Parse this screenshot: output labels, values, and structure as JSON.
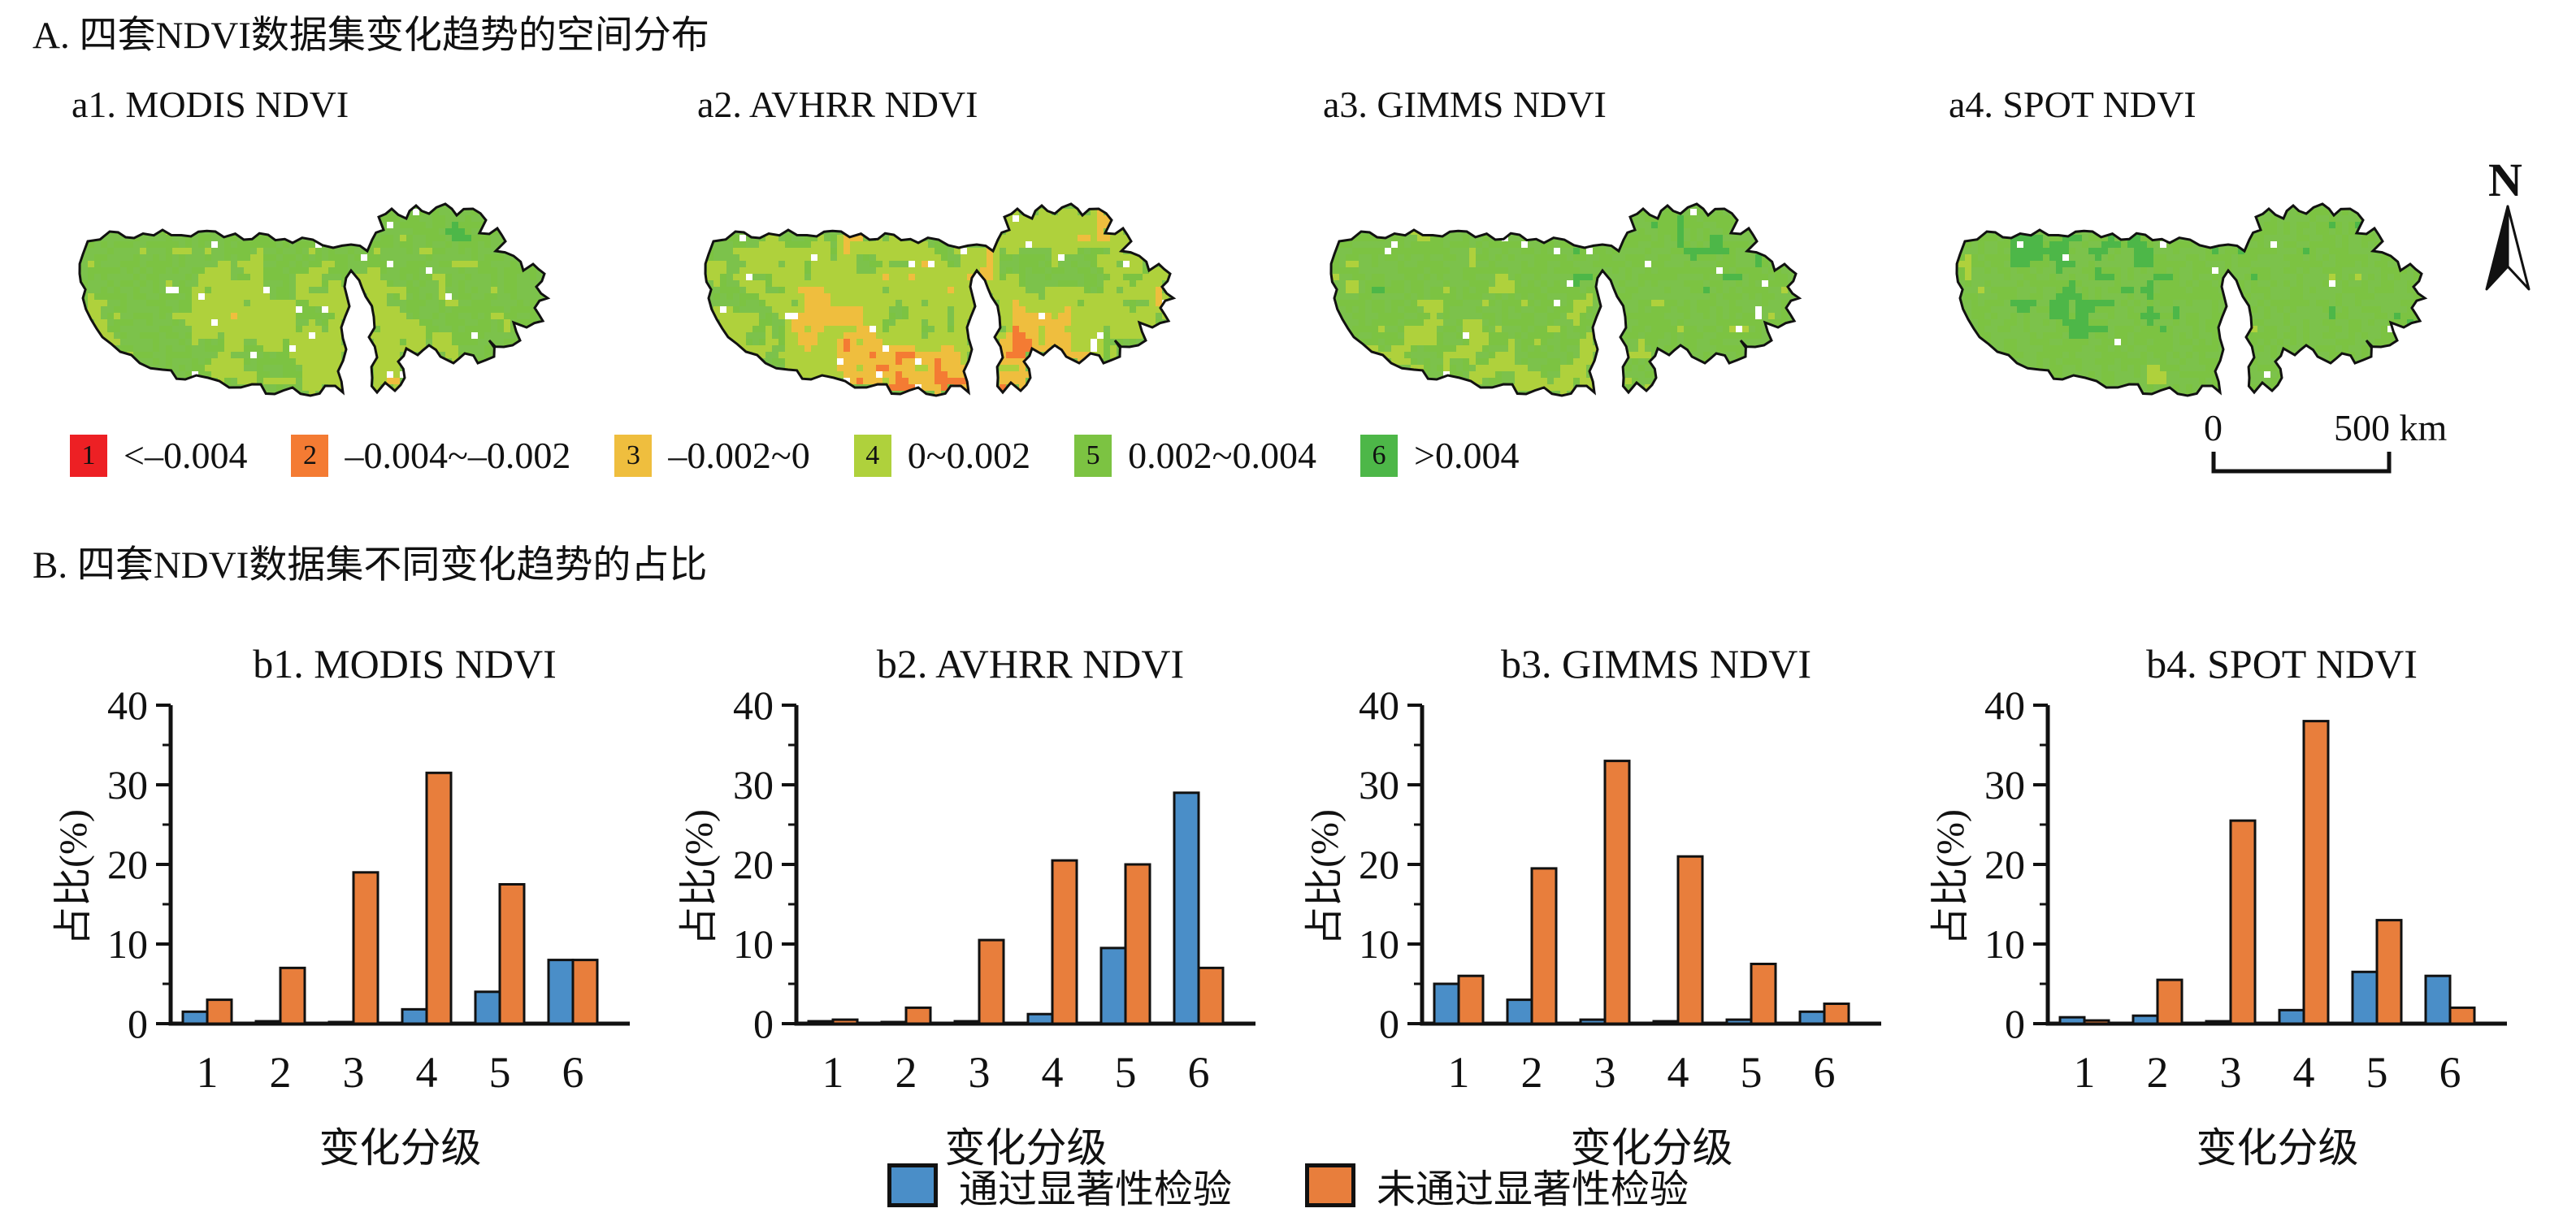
{
  "panel_a": {
    "title": "A. 四套NDVI数据集变化趋势的空间分布",
    "maps": [
      {
        "label": "a1. MODIS NDVI",
        "class_weights": [
          0.03,
          0.07,
          0.1,
          0.28,
          0.36,
          0.16
        ],
        "white": 0.02,
        "bias": 0.9
      },
      {
        "label": "a2. AVHRR NDVI",
        "class_weights": [
          0.1,
          0.16,
          0.16,
          0.22,
          0.26,
          0.1
        ],
        "white": 0.02,
        "bias": 1.25
      },
      {
        "label": "a3. GIMMS NDVI",
        "class_weights": [
          0.04,
          0.09,
          0.11,
          0.26,
          0.34,
          0.16
        ],
        "white": 0.015,
        "bias": 0.9
      },
      {
        "label": "a4. SPOT NDVI",
        "class_weights": [
          0.01,
          0.03,
          0.06,
          0.24,
          0.42,
          0.24
        ],
        "white": 0.01,
        "bias": 0.5
      }
    ],
    "legend_classes": [
      {
        "id": "1",
        "color": "#ED2024",
        "label": "<–0.004"
      },
      {
        "id": "2",
        "color": "#F47B33",
        "label": "–0.004~–0.002"
      },
      {
        "id": "3",
        "color": "#EFBE3E",
        "label": "–0.002~0"
      },
      {
        "id": "4",
        "color": "#AFD13C",
        "label": "0~0.002"
      },
      {
        "id": "5",
        "color": "#7CC342",
        "label": "0.002~0.004"
      },
      {
        "id": "6",
        "color": "#4DB748",
        "label": ">0.004"
      }
    ],
    "north_label": "N",
    "scalebar": {
      "start": "0",
      "end": "500 km"
    }
  },
  "panel_b": {
    "title": "B. 四套NDVI数据集不同变化趋势的占比",
    "legend": [
      {
        "color": "#4A8EC8",
        "label": "通过显著性检验"
      },
      {
        "color": "#E87E3C",
        "label": "未通过显著性检验"
      }
    ]
  },
  "chart_data": [
    {
      "type": "bar",
      "title": "b1. MODIS NDVI",
      "categories": [
        "1",
        "2",
        "3",
        "4",
        "5",
        "6"
      ],
      "series": [
        {
          "name": "通过显著性检验",
          "color": "#4A8EC8",
          "values": [
            1.5,
            0.3,
            0.2,
            1.8,
            4.0,
            8.0
          ]
        },
        {
          "name": "未通过显著性检验",
          "color": "#E87E3C",
          "values": [
            3.0,
            7.0,
            19.0,
            31.5,
            17.5,
            8.0
          ]
        }
      ],
      "xlabel": "变化分级",
      "ylabel": "占比(%)",
      "ylim": [
        0,
        40
      ],
      "yticks": [
        0,
        10,
        20,
        30,
        40
      ],
      "grid": false,
      "legend_position": "bottom-shared"
    },
    {
      "type": "bar",
      "title": "b2. AVHRR NDVI",
      "categories": [
        "1",
        "2",
        "3",
        "4",
        "5",
        "6"
      ],
      "series": [
        {
          "name": "通过显著性检验",
          "color": "#4A8EC8",
          "values": [
            0.3,
            0.1,
            0.3,
            1.2,
            9.5,
            29.0
          ]
        },
        {
          "name": "未通过显著性检验",
          "color": "#E87E3C",
          "values": [
            0.5,
            2.0,
            10.5,
            20.5,
            20.0,
            7.0
          ]
        }
      ],
      "xlabel": "变化分级",
      "ylabel": "占比(%)",
      "ylim": [
        0,
        40
      ],
      "yticks": [
        0,
        10,
        20,
        30,
        40
      ],
      "grid": false,
      "legend_position": "bottom-shared"
    },
    {
      "type": "bar",
      "title": "b3. GIMMS NDVI",
      "categories": [
        "1",
        "2",
        "3",
        "4",
        "5",
        "6"
      ],
      "series": [
        {
          "name": "通过显著性检验",
          "color": "#4A8EC8",
          "values": [
            5.0,
            3.0,
            0.5,
            0.3,
            0.5,
            1.5
          ]
        },
        {
          "name": "未通过显著性检验",
          "color": "#E87E3C",
          "values": [
            6.0,
            19.5,
            33.0,
            21.0,
            7.5,
            2.5
          ]
        }
      ],
      "xlabel": "变化分级",
      "ylabel": "占比(%)",
      "ylim": [
        0,
        40
      ],
      "yticks": [
        0,
        10,
        20,
        30,
        40
      ],
      "grid": false,
      "legend_position": "bottom-shared"
    },
    {
      "type": "bar",
      "title": "b4. SPOT NDVI",
      "categories": [
        "1",
        "2",
        "3",
        "4",
        "5",
        "6"
      ],
      "series": [
        {
          "name": "通过显著性检验",
          "color": "#4A8EC8",
          "values": [
            0.8,
            1.0,
            0.3,
            1.7,
            6.5,
            6.0
          ]
        },
        {
          "name": "未通过显著性检验",
          "color": "#E87E3C",
          "values": [
            0.4,
            5.5,
            25.5,
            38.0,
            13.0,
            2.0
          ]
        }
      ],
      "xlabel": "变化分级",
      "ylabel": "占比(%)",
      "ylim": [
        0,
        40
      ],
      "yticks": [
        0,
        10,
        20,
        30,
        40
      ],
      "grid": false,
      "legend_position": "bottom-shared"
    }
  ]
}
